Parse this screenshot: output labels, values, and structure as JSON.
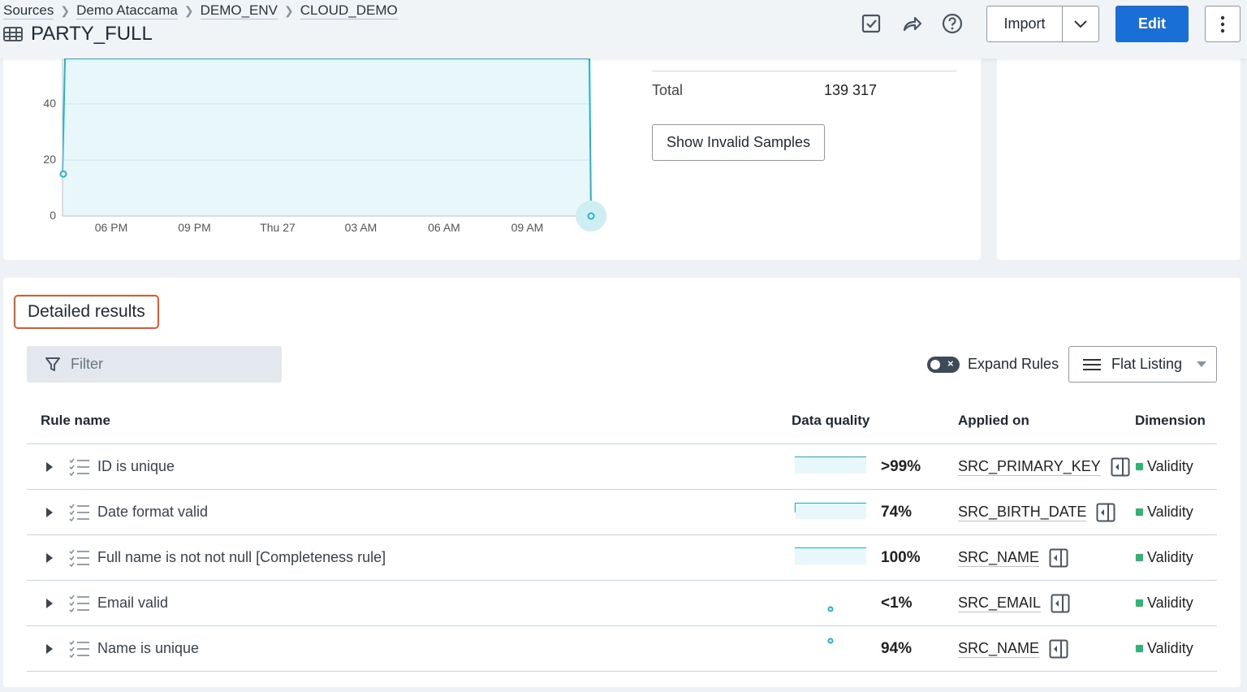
{
  "header": {
    "breadcrumbs": [
      "Sources",
      "Demo Ataccama",
      "DEMO_ENV",
      "CLOUD_DEMO"
    ],
    "title": "PARTY_FULL",
    "import_label": "Import",
    "edit_label": "Edit",
    "accent": "#1a6fd6"
  },
  "summary": {
    "total_label": "Total",
    "total_value": "139 317",
    "show_invalid_label": "Show Invalid Samples"
  },
  "chart_data": {
    "type": "area",
    "x_ticks": [
      "06 PM",
      "09 PM",
      "Thu 27",
      "03 AM",
      "06 AM",
      "09 AM"
    ],
    "y_ticks": [
      "0",
      "20",
      "40"
    ],
    "series": [
      {
        "points": [
          15,
          60,
          60,
          60,
          60,
          0
        ]
      }
    ],
    "color": "#1fb3c9"
  },
  "details": {
    "title": "Detailed results",
    "filter_placeholder": "Filter",
    "expand_rules_label": "Expand Rules",
    "listing_label": "Flat Listing",
    "columns": [
      "Rule name",
      "Data quality",
      "Applied on",
      "Dimension"
    ],
    "rows": [
      {
        "name": "ID is unique",
        "dq": ">99%",
        "dq_value": 99.9,
        "applied": "SRC_PRIMARY_KEY",
        "dimension": "Validity"
      },
      {
        "name": "Date format valid",
        "dq": "74%",
        "dq_value": 74,
        "applied": "SRC_BIRTH_DATE",
        "dimension": "Validity"
      },
      {
        "name": "Full name is not not null [Completeness rule]",
        "dq": "100%",
        "dq_value": 100,
        "applied": "SRC_NAME",
        "dimension": "Validity"
      },
      {
        "name": "Email valid",
        "dq": "<1%",
        "dq_value": 0.5,
        "applied": "SRC_EMAIL",
        "dimension": "Validity"
      },
      {
        "name": "Name is unique",
        "dq": "94%",
        "dq_value": 94,
        "applied": "SRC_NAME",
        "dimension": "Validity"
      }
    ]
  }
}
